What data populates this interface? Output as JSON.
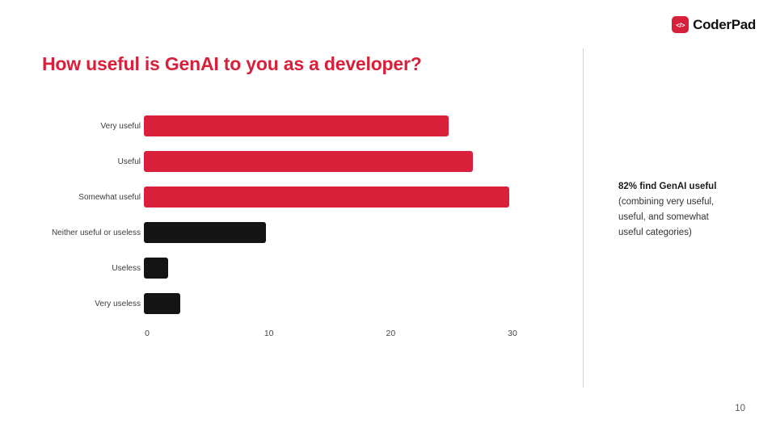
{
  "logo": {
    "icon_glyph": "</>",
    "text": "CoderPad"
  },
  "title": "How useful is GenAI to you as a developer?",
  "chart_data": {
    "type": "bar",
    "orientation": "horizontal",
    "title": "How useful is GenAI to you as a developer?",
    "categories": [
      "Very useful",
      "Useful",
      "Somewhat useful",
      "Neither useful or useless",
      "Useless",
      "Very useless"
    ],
    "values": [
      25,
      27,
      30,
      10,
      2,
      3
    ],
    "bar_colors": [
      "#d8203a",
      "#d8203a",
      "#d8203a",
      "#141414",
      "#141414",
      "#141414"
    ],
    "xlim": [
      0,
      30
    ],
    "x_ticks": [
      0,
      10,
      20,
      30
    ],
    "grid": false,
    "legend": false,
    "xlabel": "",
    "ylabel": ""
  },
  "annotation": {
    "bold": "82% find GenAI useful",
    "rest": " (combining very useful, useful, and somewhat useful categories)"
  },
  "page_number": "10",
  "colors": {
    "accent_red": "#d8203a",
    "bar_black": "#141414",
    "divider_gray": "#d4d4d4"
  }
}
